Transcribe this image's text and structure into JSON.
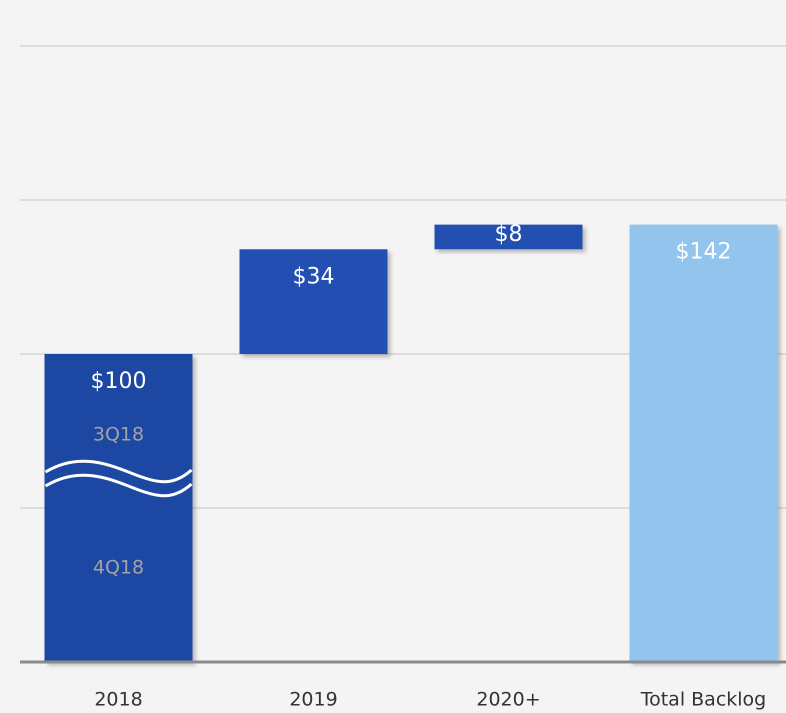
{
  "chart_data": {
    "type": "waterfall",
    "categories": [
      "2018",
      "2019",
      "2020+",
      "Total Backlog"
    ],
    "values": [
      100,
      34,
      8,
      142
    ],
    "value_labels": [
      "$100",
      "$34",
      "$8",
      "$142"
    ],
    "is_total": [
      false,
      false,
      false,
      true
    ],
    "colors": [
      "#1f47a3",
      "#2350b1",
      "#2350b1",
      "#93c4ed"
    ],
    "ylim": [
      0,
      200
    ],
    "yticks": [
      0,
      50,
      100,
      150,
      200
    ],
    "grid": true,
    "annotations": [
      "3Q18",
      "4Q18"
    ]
  }
}
